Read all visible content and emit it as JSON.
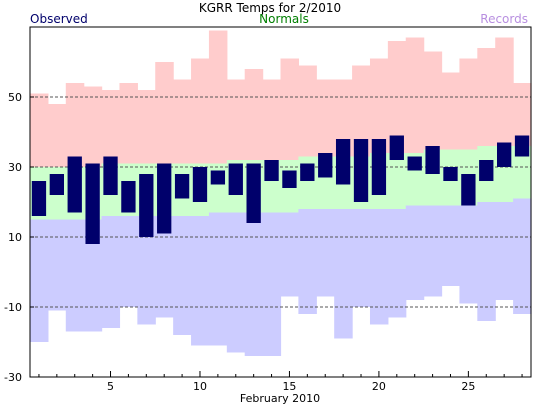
{
  "colors": {
    "observed": "#00006b",
    "normals": "#007f00",
    "records": "#b88fe0",
    "record_band": "#ffcccc",
    "normal_band": "#ccffcc",
    "low_band": "#ccccff",
    "grid": "#555555"
  },
  "chart_data": {
    "type": "bar",
    "title": "KGRR Temps for 2/2010",
    "legend": {
      "observed": "Observed",
      "normals": "Normals",
      "records": "Records"
    },
    "xlabel": "February 2010",
    "ylim": [
      -30,
      70
    ],
    "xlim": [
      0.5,
      28.5
    ],
    "yticks": [
      -30,
      -10,
      10,
      30,
      50
    ],
    "xticks": [
      5,
      10,
      15,
      20,
      25
    ],
    "gridlines_y": [
      -10,
      10,
      30,
      50
    ],
    "days": [
      1,
      2,
      3,
      4,
      5,
      6,
      7,
      8,
      9,
      10,
      11,
      12,
      13,
      14,
      15,
      16,
      17,
      18,
      19,
      20,
      21,
      22,
      23,
      24,
      25,
      26,
      27,
      28
    ],
    "record_high": [
      51,
      48,
      54,
      53,
      52,
      54,
      52,
      60,
      55,
      61,
      69,
      55,
      58,
      55,
      61,
      59,
      55,
      55,
      59,
      61,
      66,
      67,
      63,
      57,
      61,
      64,
      67,
      54
    ],
    "record_low": [
      -20,
      -11,
      -17,
      -17,
      -16,
      -10,
      -15,
      -13,
      -18,
      -21,
      -21,
      -23,
      -24,
      -24,
      -7,
      -12,
      -7,
      -19,
      -10,
      -15,
      -13,
      -8,
      -7,
      -4,
      -9,
      -14,
      -8,
      -12
    ],
    "normal_high": [
      30,
      30,
      30,
      30,
      31,
      31,
      31,
      31,
      31,
      31,
      31,
      32,
      32,
      32,
      32,
      33,
      33,
      33,
      33,
      34,
      34,
      34,
      35,
      35,
      35,
      36,
      36,
      36
    ],
    "normal_low": [
      15,
      15,
      15,
      15,
      16,
      16,
      16,
      16,
      16,
      16,
      17,
      17,
      17,
      17,
      17,
      18,
      18,
      18,
      18,
      18,
      18,
      19,
      19,
      19,
      19,
      20,
      20,
      21
    ],
    "observed_high": [
      26,
      28,
      33,
      31,
      33,
      26,
      28,
      31,
      28,
      30,
      29,
      31,
      31,
      32,
      29,
      31,
      34,
      38,
      38,
      38,
      39,
      33,
      36,
      30,
      28,
      32,
      37,
      39
    ],
    "observed_low": [
      16,
      22,
      17,
      8,
      22,
      17,
      10,
      11,
      21,
      20,
      25,
      22,
      14,
      26,
      24,
      26,
      27,
      25,
      20,
      22,
      32,
      29,
      28,
      26,
      19,
      26,
      30,
      33
    ]
  }
}
